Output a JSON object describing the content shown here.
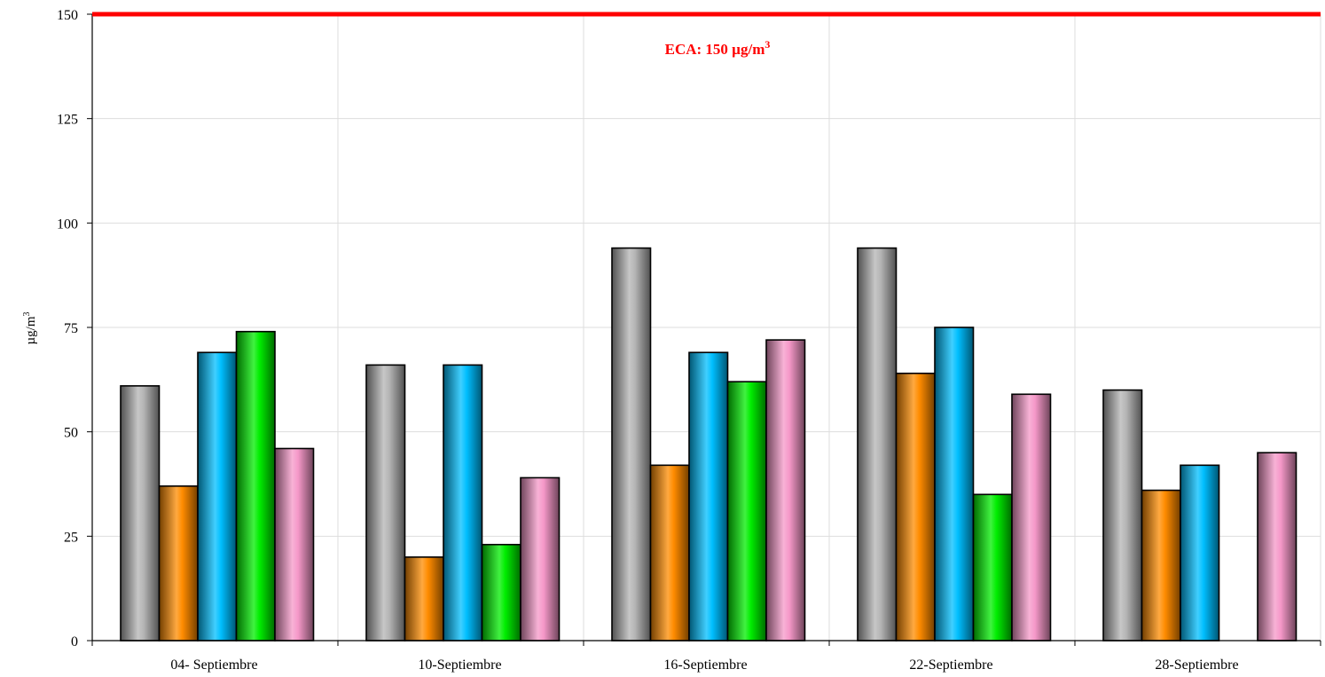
{
  "chart_data": {
    "type": "bar",
    "title": "",
    "xlabel": "",
    "ylabel": "µg/m",
    "ylabel_superscript": "3",
    "ylim": [
      0,
      150
    ],
    "yticks": [
      0,
      25,
      50,
      75,
      100,
      125,
      150
    ],
    "categories": [
      "04- Septiembre",
      "10-Septiembre",
      "16-Septiembre",
      "22-Septiembre",
      "28-Septiembre"
    ],
    "series": [
      {
        "color": "#b4b4b4",
        "values": [
          61,
          66,
          94,
          94,
          60
        ]
      },
      {
        "color": "#ff8c00",
        "values": [
          37,
          20,
          42,
          64,
          36
        ]
      },
      {
        "color": "#00bfff",
        "values": [
          69,
          66,
          69,
          75,
          42
        ]
      },
      {
        "color": "#00ee00",
        "values": [
          74,
          23,
          62,
          35,
          null
        ]
      },
      {
        "color": "#f598c8",
        "values": [
          46,
          39,
          72,
          59,
          45
        ]
      }
    ],
    "reference_line": {
      "value": 150,
      "color": "#ff0000",
      "label": "ECA: 150 µg/m",
      "label_superscript": "3"
    },
    "grid": true,
    "legend": "none"
  }
}
